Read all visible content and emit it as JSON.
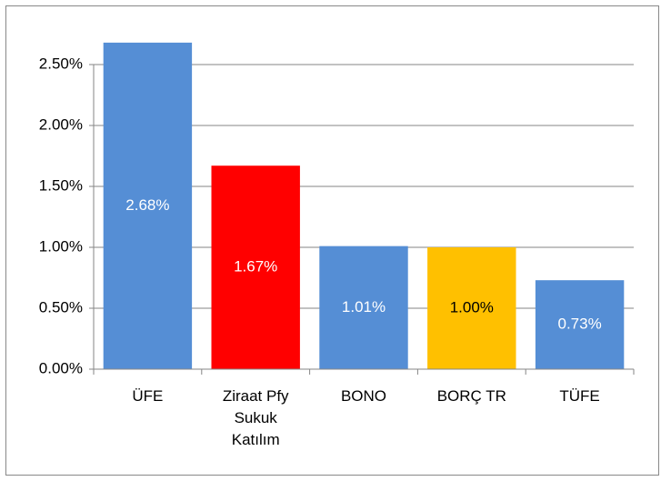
{
  "chart_data": {
    "type": "bar",
    "categories": [
      "ÜFE",
      "Ziraat Pfy Sukuk Katılım",
      "BONO",
      "BORÇ TR",
      "TÜFE"
    ],
    "values": [
      2.68,
      1.67,
      1.01,
      1.0,
      0.73
    ],
    "value_labels": [
      "2.68%",
      "1.67%",
      "1.01%",
      "1.00%",
      "0.73%"
    ],
    "colors": [
      "#558ed5",
      "#ff0000",
      "#558ed5",
      "#ffc000",
      "#558ed5"
    ],
    "ylim": [
      0,
      2.5
    ],
    "yticks": [
      {
        "value": 0,
        "label": "0.00%"
      },
      {
        "value": 0.5,
        "label": "0.50%"
      },
      {
        "value": 1,
        "label": "1.00%"
      },
      {
        "value": 1.5,
        "label": "1.50%"
      },
      {
        "value": 2,
        "label": "2.00%"
      },
      {
        "value": 2.5,
        "label": "2.50%"
      }
    ],
    "grid": true
  }
}
